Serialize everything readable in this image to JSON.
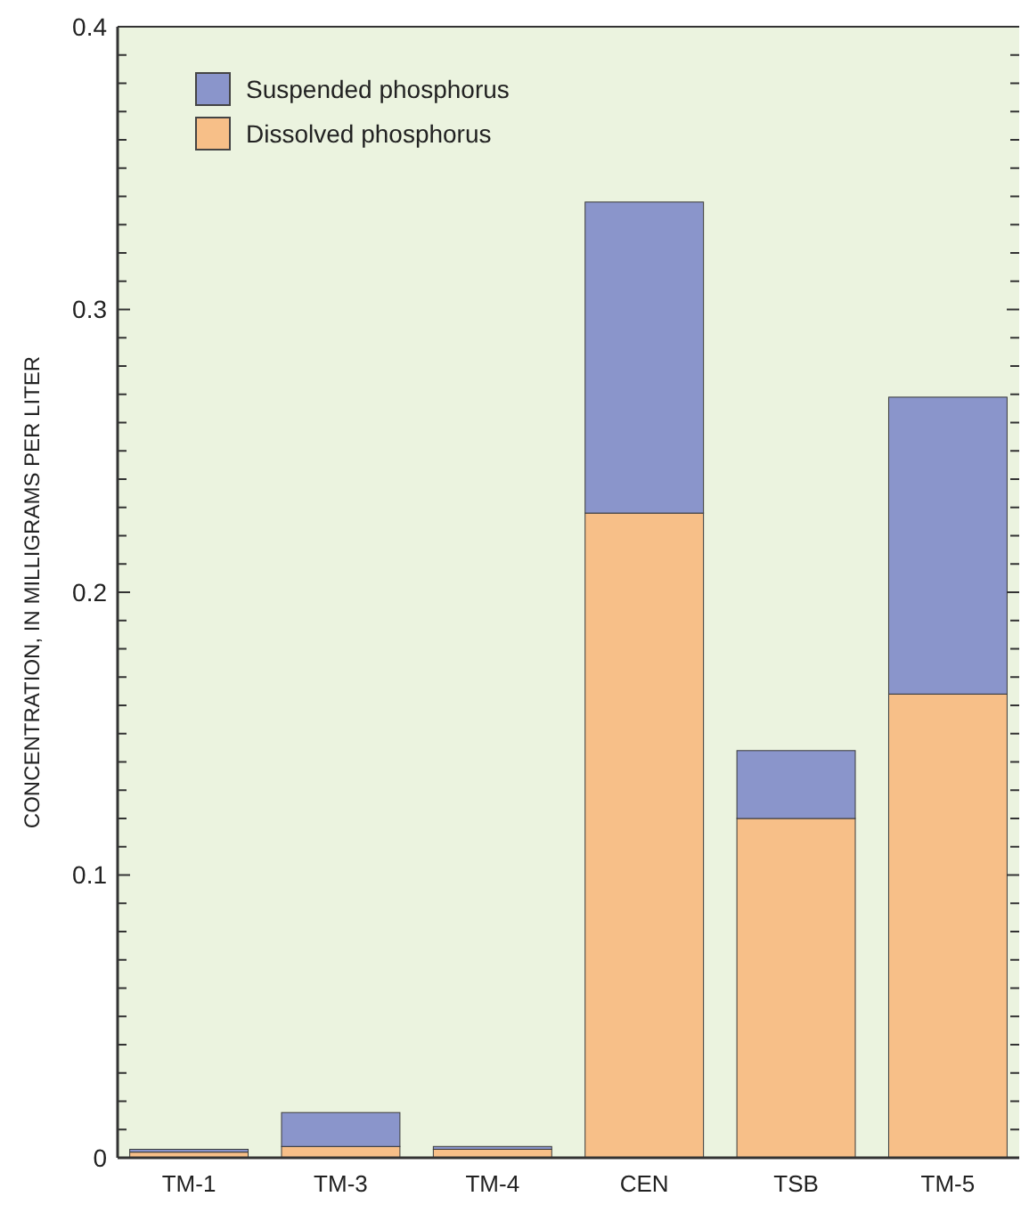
{
  "chart_data": {
    "type": "bar",
    "stacked": true,
    "categories": [
      "TM-1",
      "TM-3",
      "TM-4",
      "CEN",
      "TSB",
      "TM-5"
    ],
    "series": [
      {
        "name": "Dissolved phosphorus",
        "color": "#f7bf88",
        "values": [
          0.002,
          0.004,
          0.003,
          0.228,
          0.12,
          0.164
        ]
      },
      {
        "name": "Suspended phosphorus",
        "color": "#8a95cb",
        "values": [
          0.001,
          0.012,
          0.001,
          0.11,
          0.024,
          0.105
        ]
      }
    ],
    "ylabel": "CONCENTRATION, IN MILLIGRAMS PER LITER",
    "ylim": [
      0,
      0.4
    ],
    "yticks": [
      0,
      {
        "value": 0.01,
        "label": null
      },
      {
        "value": 0.02,
        "label": null
      },
      {
        "value": 0.03,
        "label": null
      },
      {
        "value": 0.04,
        "label": null
      },
      {
        "value": 0.05,
        "label": null
      },
      {
        "value": 0.06,
        "label": null
      },
      {
        "value": 0.07,
        "label": null
      },
      {
        "value": 0.08,
        "label": null
      },
      {
        "value": 0.09,
        "label": null
      },
      0.1,
      {
        "value": 0.11,
        "label": null
      },
      {
        "value": 0.12,
        "label": null
      },
      {
        "value": 0.13,
        "label": null
      },
      {
        "value": 0.14,
        "label": null
      },
      {
        "value": 0.15,
        "label": null
      },
      {
        "value": 0.16,
        "label": null
      },
      {
        "value": 0.17,
        "label": null
      },
      {
        "value": 0.18,
        "label": null
      },
      {
        "value": 0.19,
        "label": null
      },
      0.2,
      {
        "value": 0.21,
        "label": null
      },
      {
        "value": 0.22,
        "label": null
      },
      {
        "value": 0.23,
        "label": null
      },
      {
        "value": 0.24,
        "label": null
      },
      {
        "value": 0.25,
        "label": null
      },
      {
        "value": 0.26,
        "label": null
      },
      {
        "value": 0.27,
        "label": null
      },
      {
        "value": 0.28,
        "label": null
      },
      {
        "value": 0.29,
        "label": null
      },
      0.3,
      {
        "value": 0.31,
        "label": null
      },
      {
        "value": 0.32,
        "label": null
      },
      {
        "value": 0.33,
        "label": null
      },
      {
        "value": 0.34,
        "label": null
      },
      {
        "value": 0.35,
        "label": null
      },
      {
        "value": 0.36,
        "label": null
      },
      {
        "value": 0.37,
        "label": null
      },
      {
        "value": 0.38,
        "label": null
      },
      {
        "value": 0.39,
        "label": null
      },
      0.4
    ],
    "legend": "top left",
    "grid": false
  }
}
